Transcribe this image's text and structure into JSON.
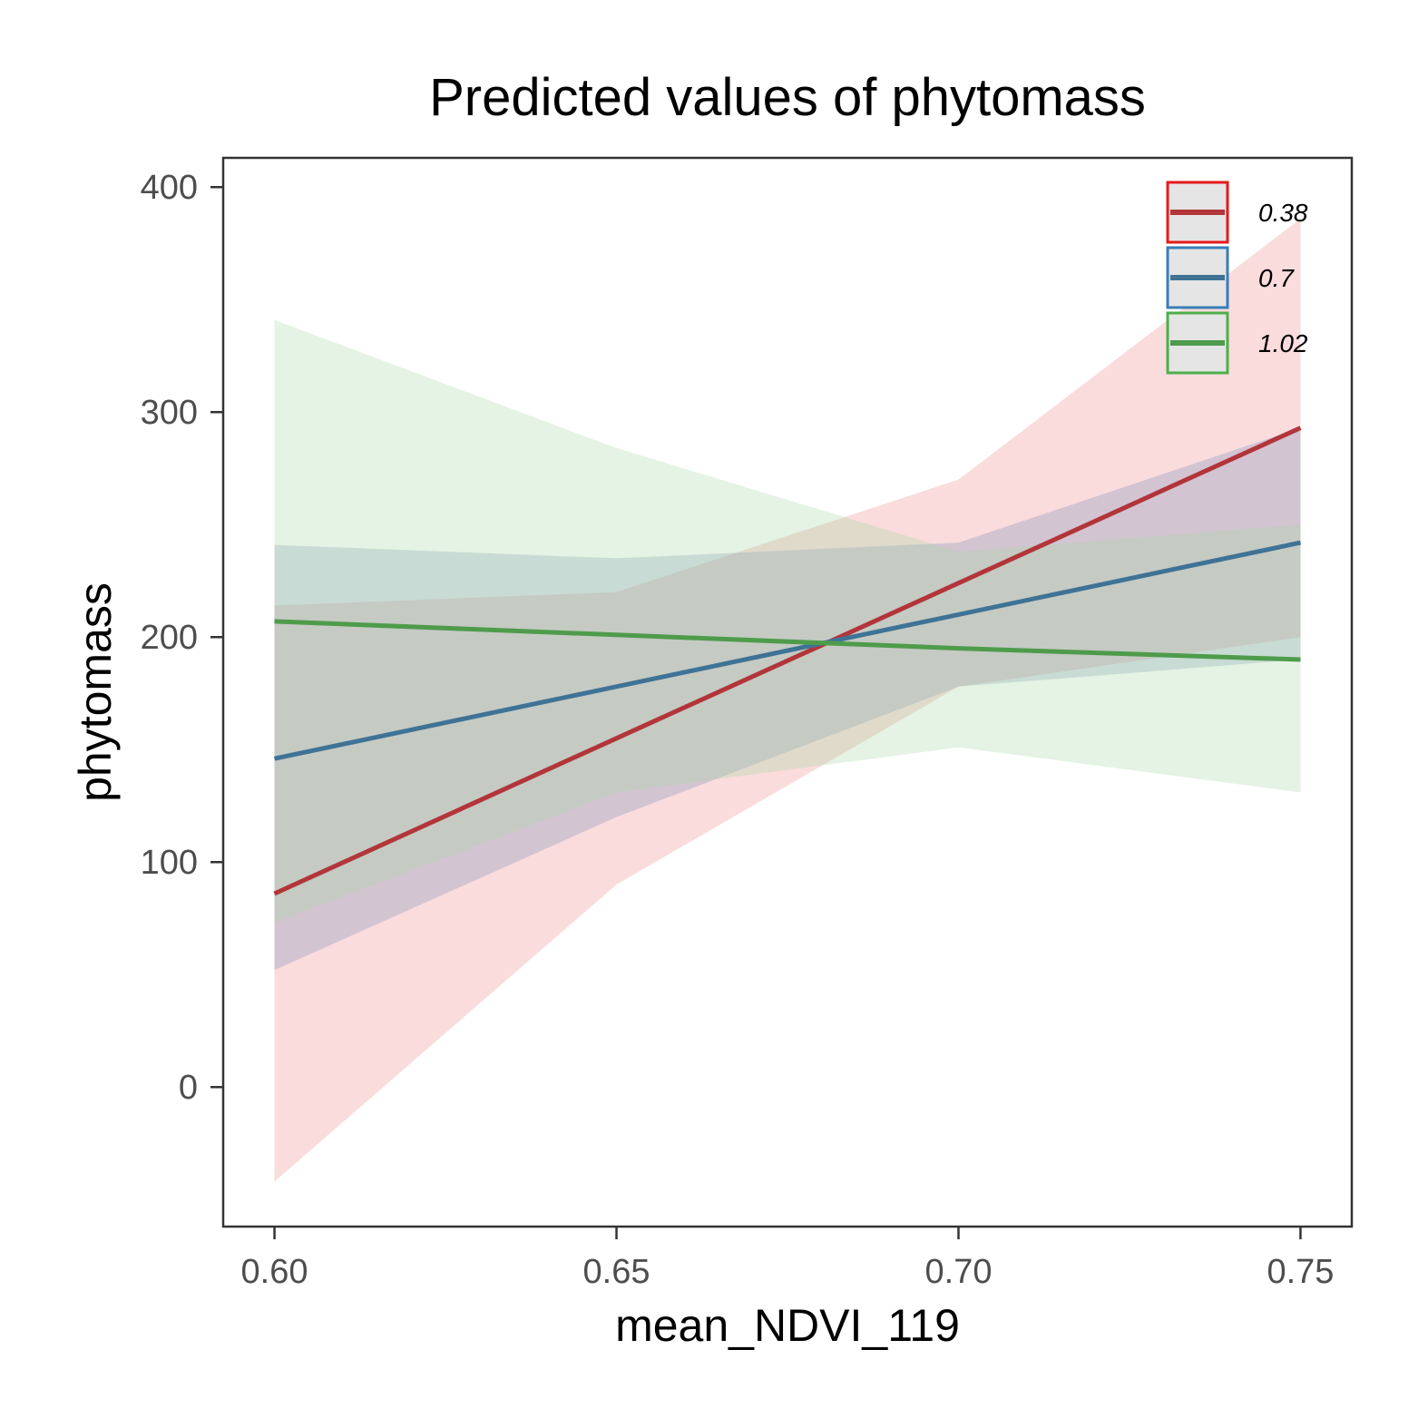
{
  "chart_data": {
    "type": "line",
    "title": "Predicted values of phytomass",
    "xlabel": "mean_NDVI_119",
    "ylabel": "phytomass",
    "xlim": [
      0.5925,
      0.7575
    ],
    "ylim": [
      -62,
      413
    ],
    "x_ticks": [
      0.6,
      0.65,
      0.7,
      0.75
    ],
    "x_tick_labels": [
      "0.60",
      "0.65",
      "0.70",
      "0.75"
    ],
    "y_ticks": [
      0,
      100,
      200,
      300,
      400
    ],
    "y_tick_labels": [
      "0",
      "100",
      "200",
      "300",
      "400"
    ],
    "grid": false,
    "legend_position": "top-right",
    "x": [
      0.6,
      0.65,
      0.7,
      0.75
    ],
    "series": [
      {
        "name": "0.38",
        "color": "#b2353a",
        "band_color": "#f08a8f",
        "legend_border": "#e41a1c",
        "values": [
          86,
          155,
          224,
          293
        ],
        "lower": [
          -42,
          90,
          178,
          200
        ],
        "upper": [
          214,
          220,
          270,
          386
        ]
      },
      {
        "name": "0.7",
        "color": "#3f7396",
        "band_color": "#7a8fb8",
        "legend_border": "#377eb8",
        "values": [
          146,
          178,
          210,
          242
        ],
        "lower": [
          52,
          120,
          178,
          190
        ],
        "upper": [
          241,
          235,
          242,
          293
        ]
      },
      {
        "name": "1.02",
        "color": "#4e9c4b",
        "band_color": "#a6d6a1",
        "legend_border": "#4daf4a",
        "values": [
          207,
          201,
          195,
          190
        ],
        "lower": [
          73,
          131,
          151,
          131
        ],
        "upper": [
          341,
          284,
          238,
          250
        ]
      }
    ]
  }
}
